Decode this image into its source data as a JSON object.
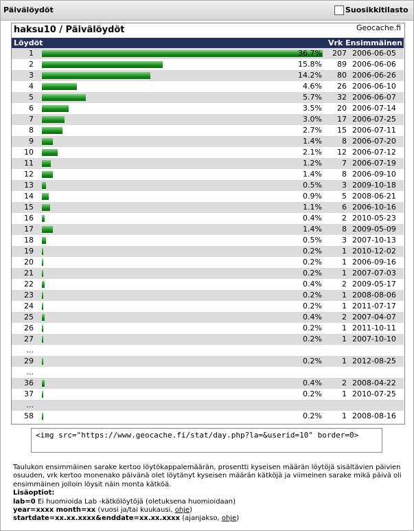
{
  "header": {
    "title": "Päivälöydöt",
    "favorite_label": "Suosikkitilasto"
  },
  "panel": {
    "title": "haksu10 / Päivälöydöt",
    "site": "Geocache.fi",
    "col_found": "Löydöt",
    "col_days": "Vrk",
    "col_first": "Ensimmäinen"
  },
  "table": {
    "rows": [
      {
        "n": 1,
        "pct": {
          "value": 36.7,
          "label": "36.7%"
        },
        "vrk": 207,
        "date": "2006-06-05"
      },
      {
        "n": 2,
        "pct": {
          "value": 15.8,
          "label": "15.8%"
        },
        "vrk": 89,
        "date": "2006-06-06"
      },
      {
        "n": 3,
        "pct": {
          "value": 14.2,
          "label": "14.2%"
        },
        "vrk": 80,
        "date": "2006-06-26"
      },
      {
        "n": 4,
        "pct": {
          "value": 4.6,
          "label": "4.6%"
        },
        "vrk": 26,
        "date": "2006-06-10"
      },
      {
        "n": 5,
        "pct": {
          "value": 5.7,
          "label": "5.7%"
        },
        "vrk": 32,
        "date": "2006-06-07"
      },
      {
        "n": 6,
        "pct": {
          "value": 3.5,
          "label": "3.5%"
        },
        "vrk": 20,
        "date": "2006-07-14"
      },
      {
        "n": 7,
        "pct": {
          "value": 3,
          "label": "3.0%"
        },
        "vrk": 17,
        "date": "2006-07-25"
      },
      {
        "n": 8,
        "pct": {
          "value": 2.7,
          "label": "2.7%"
        },
        "vrk": 15,
        "date": "2006-07-11"
      },
      {
        "n": 9,
        "pct": {
          "value": 1.4,
          "label": "1.4%"
        },
        "vrk": 8,
        "date": "2006-07-20"
      },
      {
        "n": 10,
        "pct": {
          "value": 2.1,
          "label": "2.1%"
        },
        "vrk": 12,
        "date": "2006-07-12"
      },
      {
        "n": 11,
        "pct": {
          "value": 1.2,
          "label": "1.2%"
        },
        "vrk": 7,
        "date": "2006-07-19"
      },
      {
        "n": 12,
        "pct": {
          "value": 1.4,
          "label": "1.4%"
        },
        "vrk": 8,
        "date": "2006-09-10"
      },
      {
        "n": 13,
        "pct": {
          "value": 0.5,
          "label": "0.5%"
        },
        "vrk": 3,
        "date": "2009-10-18"
      },
      {
        "n": 14,
        "pct": {
          "value": 0.9,
          "label": "0.9%"
        },
        "vrk": 5,
        "date": "2008-06-21"
      },
      {
        "n": 15,
        "pct": {
          "value": 1.1,
          "label": "1.1%"
        },
        "vrk": 6,
        "date": "2006-10-16"
      },
      {
        "n": 16,
        "pct": {
          "value": 0.4,
          "label": "0.4%"
        },
        "vrk": 2,
        "date": "2010-05-23"
      },
      {
        "n": 17,
        "pct": {
          "value": 1.4,
          "label": "1.4%"
        },
        "vrk": 8,
        "date": "2009-05-09"
      },
      {
        "n": 18,
        "pct": {
          "value": 0.5,
          "label": "0.5%"
        },
        "vrk": 3,
        "date": "2007-10-13"
      },
      {
        "n": 19,
        "pct": {
          "value": 0.2,
          "label": "0.2%"
        },
        "vrk": 1,
        "date": "2010-12-02"
      },
      {
        "n": 20,
        "pct": {
          "value": 0.2,
          "label": "0.2%"
        },
        "vrk": 1,
        "date": "2006-09-16"
      },
      {
        "n": 21,
        "pct": {
          "value": 0.2,
          "label": "0.2%"
        },
        "vrk": 1,
        "date": "2007-07-03"
      },
      {
        "n": 22,
        "pct": {
          "value": 0.4,
          "label": "0.4%"
        },
        "vrk": 2,
        "date": "2009-05-17"
      },
      {
        "n": 23,
        "pct": {
          "value": 0.2,
          "label": "0.2%"
        },
        "vrk": 1,
        "date": "2008-08-06"
      },
      {
        "n": 24,
        "pct": {
          "value": 0.2,
          "label": "0.2%"
        },
        "vrk": 1,
        "date": "2011-07-17"
      },
      {
        "n": 25,
        "pct": {
          "value": 0.4,
          "label": "0.4%"
        },
        "vrk": 2,
        "date": "2007-04-07"
      },
      {
        "n": 26,
        "pct": {
          "value": 0.2,
          "label": "0.2%"
        },
        "vrk": 1,
        "date": "2011-10-11"
      },
      {
        "n": 27,
        "pct": {
          "value": 0.2,
          "label": "0.2%"
        },
        "vrk": 1,
        "date": "2007-10-10"
      },
      {
        "n": "..."
      },
      {
        "n": 29,
        "pct": {
          "value": 0.2,
          "label": "0.2%"
        },
        "vrk": 1,
        "date": "2012-08-25"
      },
      {
        "n": "..."
      },
      {
        "n": 36,
        "pct": {
          "value": 0.4,
          "label": "0.4%"
        },
        "vrk": 2,
        "date": "2008-04-22"
      },
      {
        "n": 37,
        "pct": {
          "value": 0.2,
          "label": "0.2%"
        },
        "vrk": 1,
        "date": "2010-07-25"
      },
      {
        "n": "..."
      },
      {
        "n": 58,
        "pct": {
          "value": 0.2,
          "label": "0.2%"
        },
        "vrk": 1,
        "date": "2008-08-16"
      }
    ]
  },
  "embed": {
    "code": "<img src=\"https://www.geocache.fi/stat/day.php?la=&userid=10\" border=0>"
  },
  "info": {
    "text": "Taulukon ensimmäinen sarake kertoo löytökappalemäärän, prosentti kyseisen määrän löytöjä sisältävien päivien osuuden, vrk kertoo monenako päivänä olet löytänyt kyseisen määrän kätköjä ja viimeinen sarake mikä päivä oli ensimmäinen jolloin löysit näin monta kätköä.",
    "options_title": "Lisäoptiot:",
    "options": [
      {
        "key": "lab=0",
        "desc": " Ei huomioida Lab -kätkölöytöjä (oletuksena huomioidaan)"
      },
      {
        "key": "year=xxxx month=xx",
        "desc": " (vuosi ja/tai kuukausi, ",
        "link": "ohje",
        "end": ")"
      },
      {
        "key": "startdate=xx.xx.xxxx&enddate=xx.xx.xxxx",
        "desc": " (ajanjakso, ",
        "link": "ohje",
        "end": ")"
      }
    ]
  }
}
